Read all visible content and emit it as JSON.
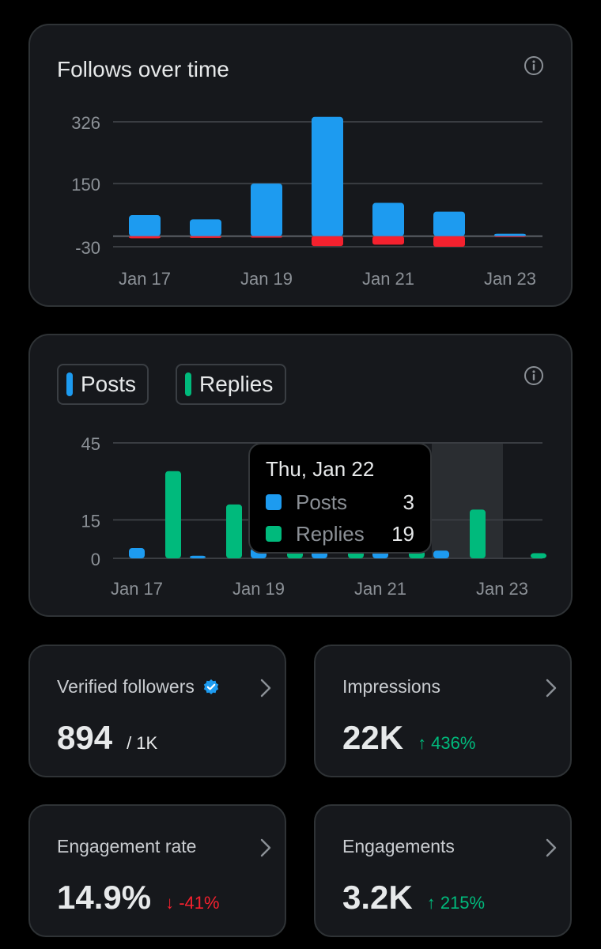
{
  "colors": {
    "posts": "#1d9bf0",
    "replies": "#00ba7c",
    "negative": "#f4212e",
    "grid": "#3a3d42",
    "axis_text": "#8b9096"
  },
  "follows_card": {
    "title": "Follows over time"
  },
  "activity_card": {
    "legend": {
      "posts": "Posts",
      "replies": "Replies"
    },
    "tooltip": {
      "date": "Thu, Jan 22",
      "posts_label": "Posts",
      "posts_value": "3",
      "replies_label": "Replies",
      "replies_value": "19"
    }
  },
  "chart_data": [
    {
      "type": "bar",
      "title": "Follows over time",
      "categories": [
        "Jan 17",
        "Jan 18",
        "Jan 19",
        "Jan 20",
        "Jan 21",
        "Jan 22",
        "Jan 23"
      ],
      "x_tick_labels": [
        "Jan 17",
        "Jan 19",
        "Jan 21",
        "Jan 23"
      ],
      "y_ticks": [
        326,
        150,
        -30
      ],
      "y_tick_labels": [
        "326",
        "150",
        "-30"
      ],
      "ylim": [
        -30,
        326
      ],
      "stacked": true,
      "series": [
        {
          "name": "Follows",
          "values": [
            60,
            48,
            150,
            340,
            95,
            70,
            7
          ]
        },
        {
          "name": "Unfollows",
          "values": [
            -6,
            -5,
            -4,
            -28,
            -24,
            -30,
            -2
          ]
        }
      ]
    },
    {
      "type": "bar",
      "title": "",
      "categories": [
        "Jan 17",
        "Jan 18",
        "Jan 19",
        "Jan 20",
        "Jan 21",
        "Jan 22",
        "Jan 23"
      ],
      "x_tick_labels": [
        "Jan 17",
        "Jan 19",
        "Jan 21",
        "Jan 23"
      ],
      "y_ticks": [
        45,
        15,
        0
      ],
      "y_tick_labels": [
        "45",
        "15",
        "0"
      ],
      "ylim": [
        0,
        45
      ],
      "highlighted_category": "Jan 22",
      "series": [
        {
          "name": "Posts",
          "values": [
            4,
            1,
            4,
            3,
            3,
            3,
            0
          ]
        },
        {
          "name": "Replies",
          "values": [
            34,
            21,
            3,
            3,
            3,
            19,
            2
          ]
        }
      ]
    }
  ],
  "metrics": [
    {
      "title": "Verified followers",
      "value": "894",
      "suffix": "/ 1K",
      "change": "",
      "direction": "none"
    },
    {
      "title": "Impressions",
      "value": "22K",
      "suffix": "",
      "change": "↑ 436%",
      "direction": "up"
    },
    {
      "title": "Engagement rate",
      "value": "14.9%",
      "suffix": "",
      "change": "↓ -41%",
      "direction": "down"
    },
    {
      "title": "Engagements",
      "value": "3.2K",
      "suffix": "",
      "change": "↑ 215%",
      "direction": "up"
    }
  ]
}
